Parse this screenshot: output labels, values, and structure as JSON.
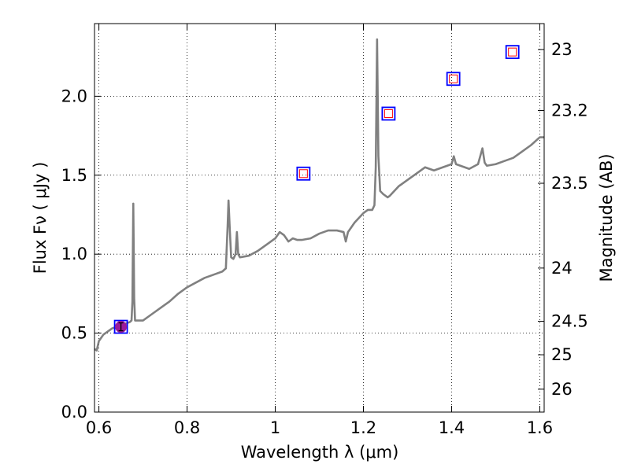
{
  "chart_data": {
    "type": "line",
    "xlabel": "Wavelength  λ (μm)",
    "ylabel": "Flux  Fν  ( μJy )",
    "y2label": "Magnitude (AB)",
    "xlim": [
      0.59,
      1.61
    ],
    "ylim": [
      0.0,
      2.46
    ],
    "x_ticks": [
      {
        "value": 0.6,
        "label": "0.6"
      },
      {
        "value": 0.8,
        "label": "0.8"
      },
      {
        "value": 1.0,
        "label": "1"
      },
      {
        "value": 1.2,
        "label": "1.2"
      },
      {
        "value": 1.4,
        "label": "1.4"
      },
      {
        "value": 1.6,
        "label": "1.6"
      }
    ],
    "y_ticks": [
      {
        "value": 0.0,
        "label": "0.0"
      },
      {
        "value": 0.5,
        "label": "0.5"
      },
      {
        "value": 1.0,
        "label": "1.0"
      },
      {
        "value": 1.5,
        "label": "1.5"
      },
      {
        "value": 2.0,
        "label": "2.0"
      }
    ],
    "y2_ticks": [
      {
        "label": "23",
        "flux": 2.296
      },
      {
        "label": "23.2",
        "flux": 1.91
      },
      {
        "label": "23.5",
        "flux": 1.449
      },
      {
        "label": "24",
        "flux": 0.912
      },
      {
        "label": "24.5",
        "flux": 0.575
      },
      {
        "label": "25",
        "flux": 0.363
      },
      {
        "label": "26",
        "flux": 0.145
      }
    ],
    "grid": true,
    "series": [
      {
        "type": "line",
        "color": "#808080",
        "points": [
          [
            0.59,
            0.4
          ],
          [
            0.595,
            0.39
          ],
          [
            0.6,
            0.45
          ],
          [
            0.61,
            0.49
          ],
          [
            0.62,
            0.51
          ],
          [
            0.63,
            0.53
          ],
          [
            0.64,
            0.54
          ],
          [
            0.65,
            0.55
          ],
          [
            0.66,
            0.56
          ],
          [
            0.67,
            0.57
          ],
          [
            0.674,
            0.58
          ],
          [
            0.676,
            0.7
          ],
          [
            0.678,
            1.32
          ],
          [
            0.68,
            0.72
          ],
          [
            0.682,
            0.58
          ],
          [
            0.69,
            0.58
          ],
          [
            0.7,
            0.58
          ],
          [
            0.72,
            0.62
          ],
          [
            0.74,
            0.66
          ],
          [
            0.76,
            0.7
          ],
          [
            0.78,
            0.75
          ],
          [
            0.8,
            0.79
          ],
          [
            0.82,
            0.82
          ],
          [
            0.84,
            0.85
          ],
          [
            0.86,
            0.87
          ],
          [
            0.88,
            0.89
          ],
          [
            0.888,
            0.91
          ],
          [
            0.892,
            1.18
          ],
          [
            0.894,
            1.34
          ],
          [
            0.897,
            1.15
          ],
          [
            0.9,
            0.98
          ],
          [
            0.905,
            0.97
          ],
          [
            0.91,
            1.0
          ],
          [
            0.913,
            1.14
          ],
          [
            0.916,
            1.0
          ],
          [
            0.92,
            0.98
          ],
          [
            0.94,
            0.99
          ],
          [
            0.96,
            1.02
          ],
          [
            0.98,
            1.06
          ],
          [
            1.0,
            1.1
          ],
          [
            1.01,
            1.14
          ],
          [
            1.02,
            1.12
          ],
          [
            1.03,
            1.08
          ],
          [
            1.04,
            1.1
          ],
          [
            1.05,
            1.09
          ],
          [
            1.06,
            1.09
          ],
          [
            1.08,
            1.1
          ],
          [
            1.1,
            1.13
          ],
          [
            1.12,
            1.15
          ],
          [
            1.14,
            1.15
          ],
          [
            1.155,
            1.14
          ],
          [
            1.16,
            1.08
          ],
          [
            1.165,
            1.14
          ],
          [
            1.18,
            1.2
          ],
          [
            1.2,
            1.26
          ],
          [
            1.21,
            1.28
          ],
          [
            1.22,
            1.28
          ],
          [
            1.225,
            1.31
          ],
          [
            1.228,
            1.55
          ],
          [
            1.231,
            2.36
          ],
          [
            1.234,
            1.62
          ],
          [
            1.238,
            1.4
          ],
          [
            1.245,
            1.38
          ],
          [
            1.255,
            1.36
          ],
          [
            1.26,
            1.37
          ],
          [
            1.28,
            1.43
          ],
          [
            1.3,
            1.47
          ],
          [
            1.32,
            1.51
          ],
          [
            1.34,
            1.55
          ],
          [
            1.36,
            1.53
          ],
          [
            1.38,
            1.55
          ],
          [
            1.4,
            1.57
          ],
          [
            1.405,
            1.62
          ],
          [
            1.41,
            1.57
          ],
          [
            1.42,
            1.56
          ],
          [
            1.44,
            1.54
          ],
          [
            1.46,
            1.57
          ],
          [
            1.465,
            1.62
          ],
          [
            1.47,
            1.67
          ],
          [
            1.475,
            1.58
          ],
          [
            1.48,
            1.56
          ],
          [
            1.5,
            1.57
          ],
          [
            1.52,
            1.59
          ],
          [
            1.54,
            1.61
          ],
          [
            1.56,
            1.65
          ],
          [
            1.58,
            1.69
          ],
          [
            1.6,
            1.74
          ],
          [
            1.61,
            1.74
          ]
        ]
      },
      {
        "type": "markers",
        "name": "",
        "points": [
          [
            0.65,
            0.54
          ],
          [
            1.064,
            1.51
          ],
          [
            1.257,
            1.89
          ],
          [
            1.404,
            2.11
          ],
          [
            1.538,
            2.28
          ]
        ]
      },
      {
        "type": "errorbar",
        "color": "#9b1a9b",
        "points": [
          {
            "x": 0.65,
            "y": 0.54,
            "err": 0.025
          }
        ]
      }
    ]
  }
}
